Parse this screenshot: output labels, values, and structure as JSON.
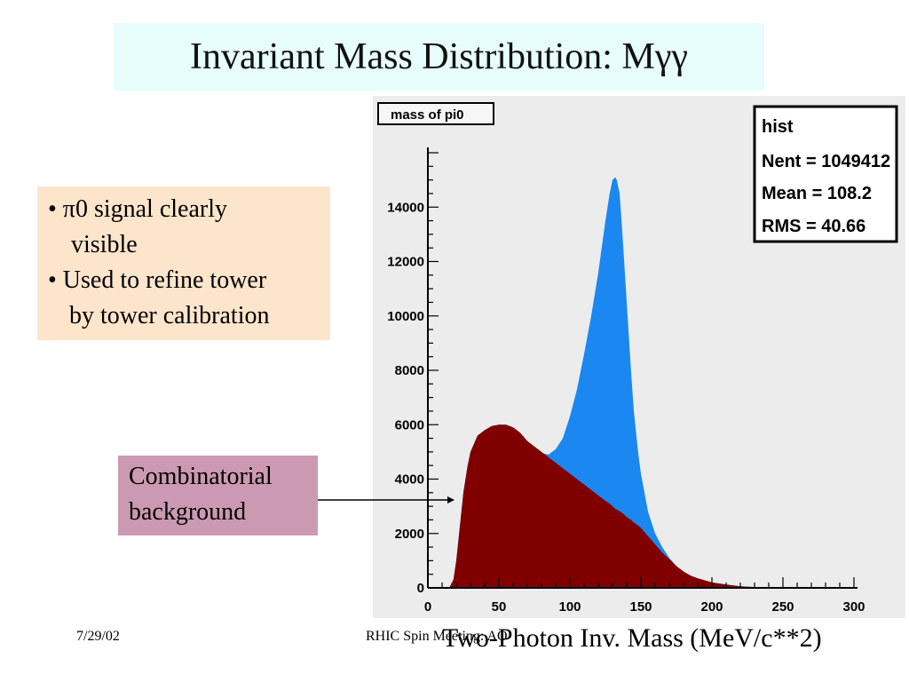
{
  "slide": {
    "title": "Invariant Mass Distribution:  Mγγ",
    "bullets": [
      "• π0 signal clearly",
      "visible",
      "• Used to refine tower",
      "by tower calibration"
    ],
    "background_label": [
      "Combinatorial",
      "background"
    ],
    "footer_date": "7/29/02",
    "footer_meeting": "RHIC Spin Meeting: AO",
    "xaxis_title": "Two-Photon Inv. Mass  (MeV/c**2)"
  },
  "chart_data": {
    "type": "area",
    "title": "mass of pi0",
    "xlabel": "Two-Photon Inv. Mass  (MeV/c**2)",
    "ylabel": "",
    "xlim": [
      0,
      300
    ],
    "ylim": [
      0,
      16000
    ],
    "x_ticks": [
      "0",
      "50",
      "100",
      "150",
      "200",
      "250",
      "300"
    ],
    "y_ticks": [
      "0",
      "2000",
      "4000",
      "6000",
      "8000",
      "10000",
      "12000",
      "14000"
    ],
    "stats": {
      "label": "hist",
      "lines": [
        "Nent = 1049412",
        "Mean  =  108.2",
        "RMS   =  40.66"
      ]
    },
    "colors": {
      "total": "#1b87f0",
      "background": "#800000",
      "frame_bg": "#ececec"
    },
    "x": [
      15,
      18,
      20,
      22,
      25,
      28,
      30,
      35,
      40,
      45,
      50,
      55,
      60,
      65,
      70,
      75,
      80,
      85,
      90,
      95,
      100,
      105,
      110,
      115,
      120,
      125,
      128,
      130,
      132,
      133,
      135,
      137,
      140,
      143,
      145,
      148,
      150,
      155,
      160,
      165,
      170,
      175,
      180,
      185,
      190,
      200,
      210,
      220,
      230,
      240,
      250
    ],
    "series": [
      {
        "name": "total",
        "values": [
          0,
          300,
          1000,
          2000,
          3500,
          4500,
          5000,
          5600,
          5800,
          5950,
          6000,
          6000,
          5900,
          5700,
          5400,
          5100,
          4950,
          4900,
          5100,
          5500,
          6300,
          7300,
          8600,
          10000,
          11600,
          13500,
          14500,
          15000,
          15100,
          15000,
          14500,
          13000,
          10500,
          8000,
          6500,
          5000,
          4200,
          2800,
          2000,
          1500,
          1100,
          800,
          600,
          450,
          350,
          200,
          120,
          60,
          30,
          10,
          0
        ]
      },
      {
        "name": "background",
        "values": [
          0,
          300,
          1000,
          2000,
          3500,
          4500,
          5000,
          5600,
          5800,
          5950,
          6000,
          6000,
          5900,
          5700,
          5400,
          5200,
          5000,
          4800,
          4600,
          4400,
          4200,
          4000,
          3800,
          3600,
          3400,
          3200,
          3100,
          3000,
          2900,
          2880,
          2820,
          2750,
          2600,
          2500,
          2400,
          2300,
          2200,
          1900,
          1600,
          1300,
          1050,
          800,
          600,
          450,
          350,
          200,
          120,
          60,
          30,
          10,
          0
        ]
      }
    ]
  }
}
